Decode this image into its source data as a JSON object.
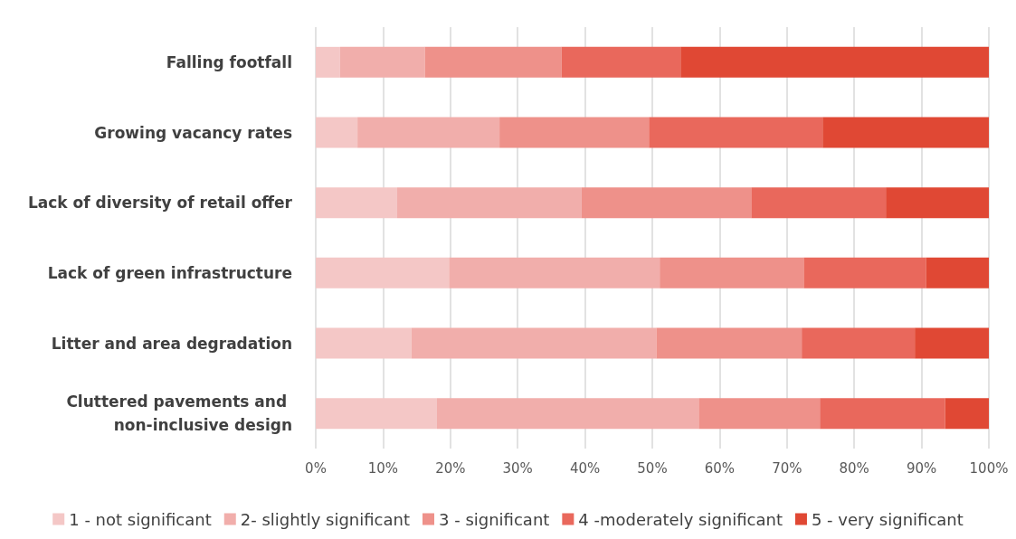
{
  "chart_data": {
    "type": "bar",
    "orientation": "horizontal",
    "stacked": true,
    "categories": [
      "Falling footfall",
      "Growing vacancy rates",
      "Lack of diversity of retail offer",
      "Lack of green infrastructure",
      "Litter and area degradation",
      "Cluttered pavements and non-inclusive design"
    ],
    "series": [
      {
        "name": "1 - not significant",
        "color": "#f4c7c6",
        "values": [
          3.6,
          6.2,
          12.1,
          19.8,
          14.2,
          18.0
        ]
      },
      {
        "name": "2- slightly significant",
        "color": "#f1aeab",
        "values": [
          12.6,
          21.1,
          27.4,
          31.3,
          36.4,
          38.9
        ]
      },
      {
        "name": "3 - significant",
        "color": "#ee918a",
        "values": [
          20.3,
          22.2,
          25.2,
          21.4,
          21.6,
          18.0
        ]
      },
      {
        "name": "4 -moderately significant",
        "color": "#e9685c",
        "values": [
          17.7,
          25.8,
          20.0,
          18.2,
          16.8,
          18.6
        ]
      },
      {
        "name": "5 - very significant",
        "color": "#e04834",
        "values": [
          45.8,
          24.7,
          15.3,
          9.3,
          11.0,
          6.5
        ]
      }
    ],
    "xlim": [
      0,
      100
    ],
    "xticks": [
      {
        "value": 0,
        "label": "0%"
      },
      {
        "value": 10,
        "label": "10%"
      },
      {
        "value": 20,
        "label": "20%"
      },
      {
        "value": 30,
        "label": "30%"
      },
      {
        "value": 40,
        "label": "40%"
      },
      {
        "value": 50,
        "label": "50%"
      },
      {
        "value": 60,
        "label": "60%"
      },
      {
        "value": 70,
        "label": "70%"
      },
      {
        "value": 80,
        "label": "80%"
      },
      {
        "value": 90,
        "label": "90%"
      },
      {
        "value": 100,
        "label": "100%"
      }
    ],
    "grid": "x",
    "legend": "bottom"
  }
}
